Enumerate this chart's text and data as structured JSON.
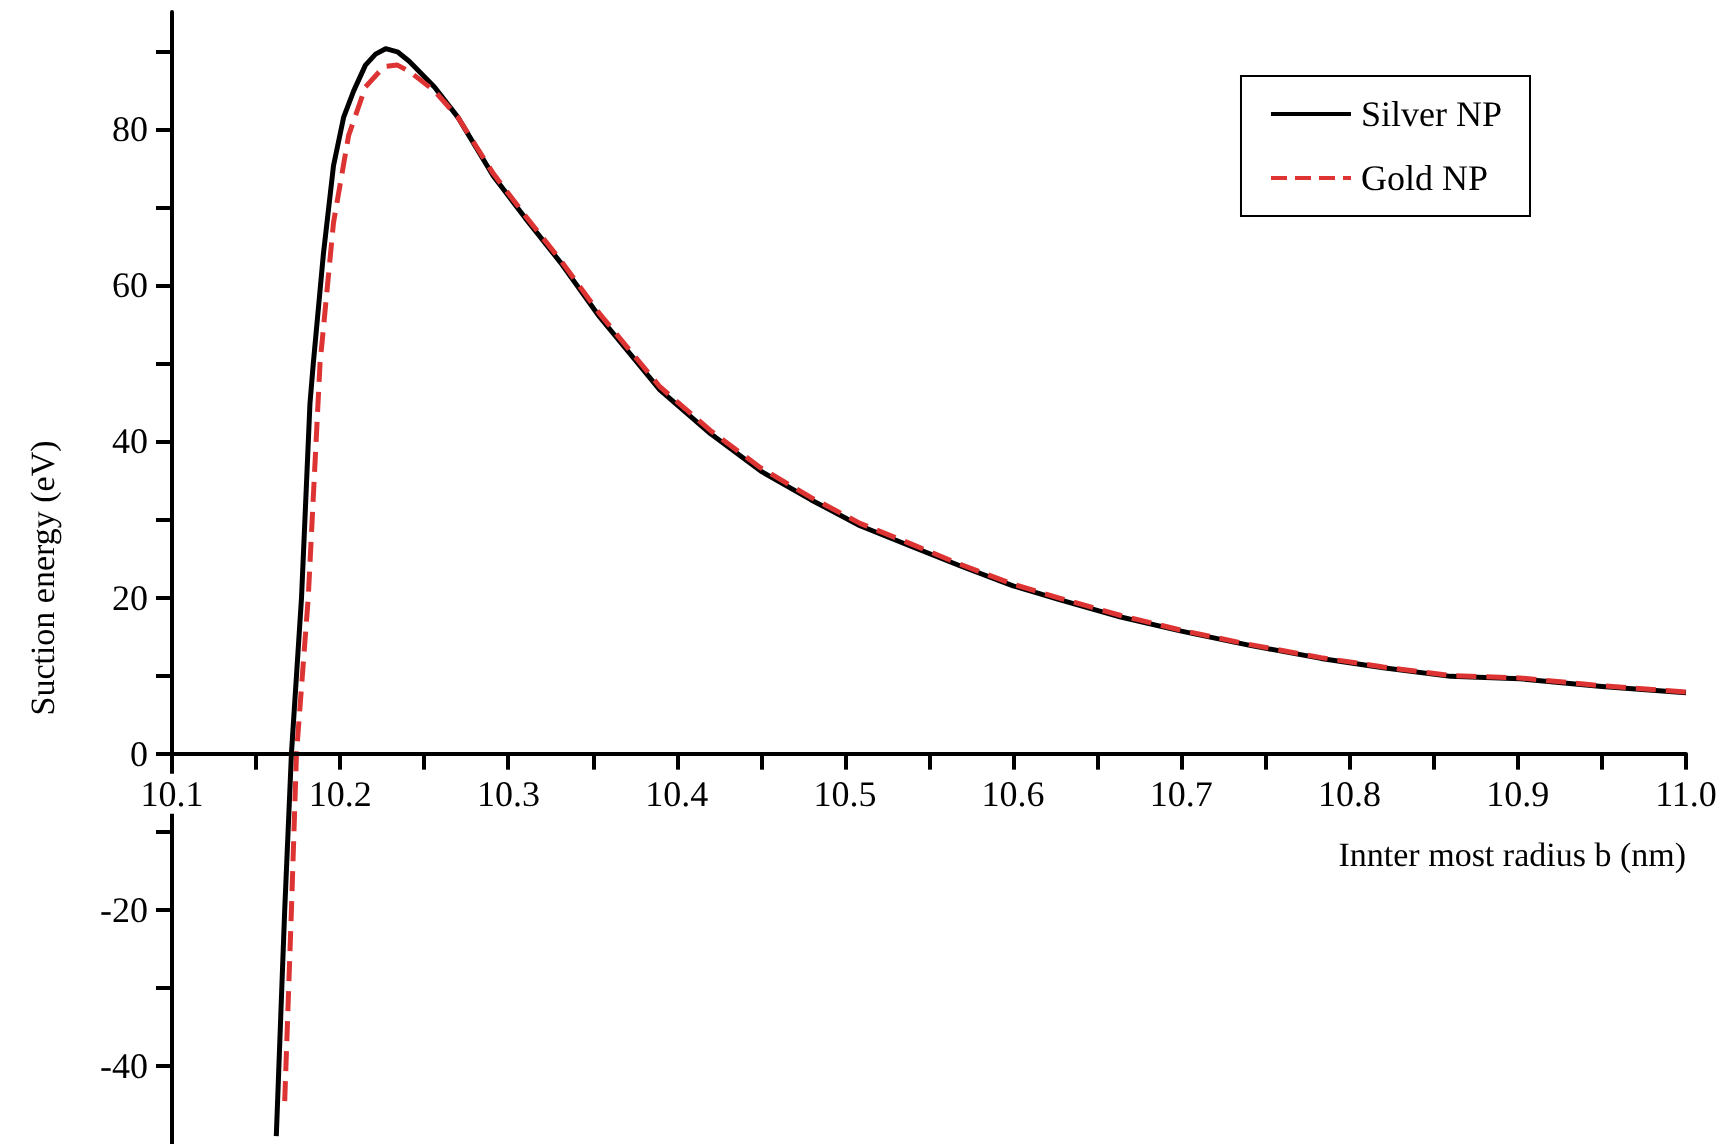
{
  "chart_data": {
    "type": "line",
    "xlabel": "Innter most radius b (nm)",
    "ylabel": "Suction energy (eV)",
    "xlim": [
      10.1,
      11.0
    ],
    "ylim": [
      -50,
      95
    ],
    "xticks": [
      10.1,
      {
        "value": 10.15,
        "label": null
      },
      10.2,
      {
        "value": 10.25,
        "label": null
      },
      10.3,
      {
        "value": 10.35,
        "label": null
      },
      10.4,
      {
        "value": 10.45,
        "label": null
      },
      10.5,
      {
        "value": 10.55,
        "label": null
      },
      10.6,
      {
        "value": 10.65,
        "label": null
      },
      10.7,
      {
        "value": 10.75,
        "label": null
      },
      10.8,
      {
        "value": 10.85,
        "label": null
      },
      10.9,
      {
        "value": 10.95,
        "label": null
      },
      {
        "value": 11.0,
        "label": "11.0"
      }
    ],
    "yticks": [
      -40,
      {
        "value": -30,
        "label": null
      },
      -20,
      {
        "value": -10,
        "label": null
      },
      0,
      {
        "value": 10,
        "label": null
      },
      20,
      {
        "value": 30,
        "label": null
      },
      40,
      {
        "value": 50,
        "label": null
      },
      60,
      {
        "value": 70,
        "label": null
      },
      80,
      {
        "value": 90,
        "label": null
      }
    ],
    "grid": false,
    "legend": "top right",
    "marker": "none",
    "series": [
      {
        "name": "Silver NP",
        "color": "#000000",
        "line_style": "solid",
        "x": [
          10.162,
          10.167,
          10.171,
          10.177,
          10.182,
          10.184,
          10.19,
          10.196,
          10.202,
          10.208,
          10.215,
          10.221,
          10.227,
          10.234,
          10.241,
          10.256,
          10.27,
          10.291,
          10.31,
          10.331,
          10.354,
          10.39,
          10.42,
          10.45,
          10.48,
          10.509,
          10.54,
          10.568,
          10.6,
          10.628,
          10.664,
          10.7,
          10.74,
          10.783,
          10.82,
          10.86,
          10.901,
          10.95,
          11.0
        ],
        "values": [
          -49,
          -20,
          0,
          20,
          44.8,
          50,
          64,
          75.3,
          81.5,
          84.9,
          88.2,
          89.6,
          90.3,
          89.9,
          88.7,
          85.4,
          81.5,
          74,
          68.6,
          62.9,
          56,
          46.6,
          41,
          36.2,
          32.5,
          29.2,
          26.5,
          24.1,
          21.5,
          19.7,
          17.5,
          15.7,
          13.9,
          12.2,
          11,
          9.9,
          9.6,
          8.6,
          7.8
        ]
      },
      {
        "name": "Gold NP",
        "color": "#dd3333",
        "line_style": "dashed",
        "x": [
          10.167,
          10.171,
          10.174,
          10.181,
          10.188,
          10.196,
          10.205,
          10.215,
          10.226,
          10.234,
          10.241,
          10.256,
          10.27,
          10.291,
          10.31,
          10.331,
          10.354,
          10.39,
          10.42,
          10.45,
          10.48,
          10.509,
          10.54,
          10.568,
          10.6,
          10.628,
          10.664,
          10.7,
          10.74,
          10.783,
          10.82,
          10.86,
          10.901,
          10.95,
          11.0
        ],
        "values": [
          -44.5,
          -20,
          0,
          20,
          50,
          68,
          79.2,
          85.4,
          88,
          88.2,
          87.4,
          84.9,
          81.5,
          74.3,
          68.9,
          63.2,
          56.4,
          47,
          41.4,
          36.6,
          32.8,
          29.5,
          26.8,
          24.3,
          21.7,
          19.9,
          17.7,
          15.8,
          14,
          12.3,
          11.1,
          10,
          9.7,
          8.7,
          7.9
        ]
      }
    ]
  }
}
